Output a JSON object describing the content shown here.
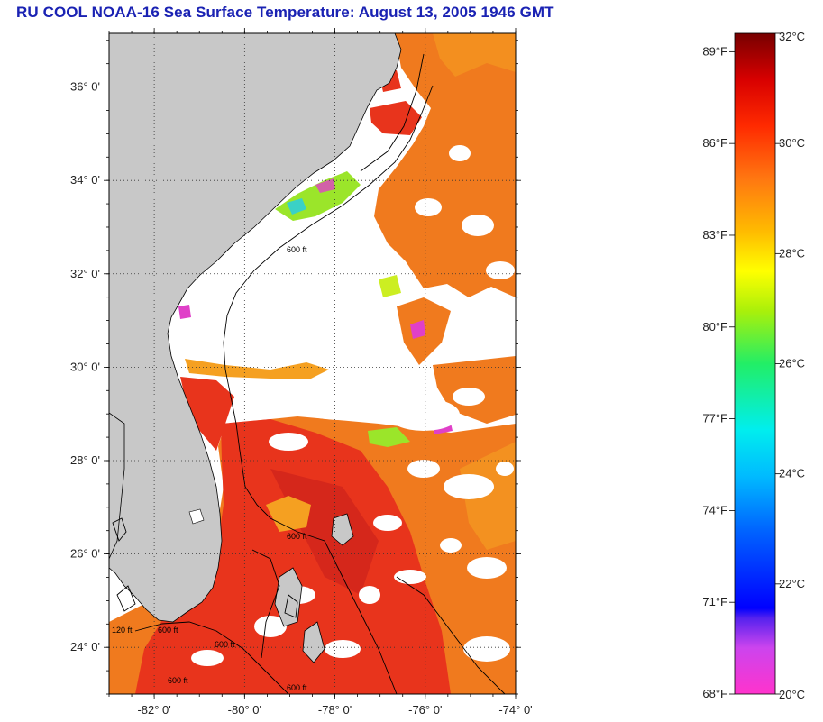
{
  "title": "RU COOL  NOAA-16  Sea Surface Temperature:  August 13, 2005 1946 GMT",
  "map": {
    "lat_range": [
      23.0,
      37.15
    ],
    "lon_range": [
      -83.0,
      -74.0
    ],
    "lat_ticks": [
      "24° 0'",
      "26° 0'",
      "28° 0'",
      "30° 0'",
      "32° 0'",
      "34° 0'",
      "36° 0'"
    ],
    "lon_ticks": [
      "-82° 0'",
      "-80° 0'",
      "-78° 0'",
      "-76° 0'",
      "-74° 0'"
    ],
    "grid": "dotted",
    "contour_labels": [
      "600 ft",
      "600 ft",
      "600 ft",
      "600 ft",
      "600 ft",
      "600 ft",
      "120 ft"
    ],
    "colors": {
      "land": "#c8c8c8",
      "cloud_mask": "#ffffff",
      "coastline": "#000000",
      "warm_water": "#e8341c",
      "moderate_water": "#f07a1e"
    }
  },
  "colorbar": {
    "celsius_labels": [
      "32°C",
      "30°C",
      "28°C",
      "26°C",
      "24°C",
      "22°C",
      "20°C"
    ],
    "fahrenheit_labels": [
      "89°F",
      "86°F",
      "83°F",
      "80°F",
      "77°F",
      "74°F",
      "71°F",
      "68°F"
    ],
    "celsius_range": [
      20,
      32
    ]
  }
}
